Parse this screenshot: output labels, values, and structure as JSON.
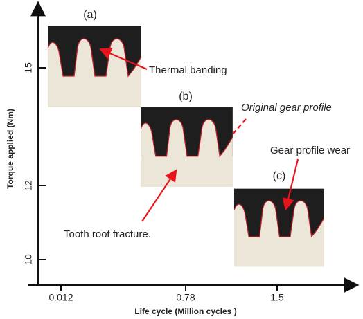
{
  "axes": {
    "y_label": "Torque applied (Nm)",
    "x_label": "Life cycle (Million cycles )",
    "y_ticks": [
      "15",
      "12",
      "10"
    ],
    "x_ticks": [
      "0.012",
      "0.78",
      "1.5"
    ]
  },
  "panels": [
    {
      "label": "(a)"
    },
    {
      "label": "(b)"
    },
    {
      "label": "(c)"
    }
  ],
  "annotations": {
    "thermal_banding": "Thermal banding",
    "original_profile": "Original gear profile",
    "profile_wear": "Gear profile wear",
    "root_fracture": "Tooth root fracture."
  }
}
